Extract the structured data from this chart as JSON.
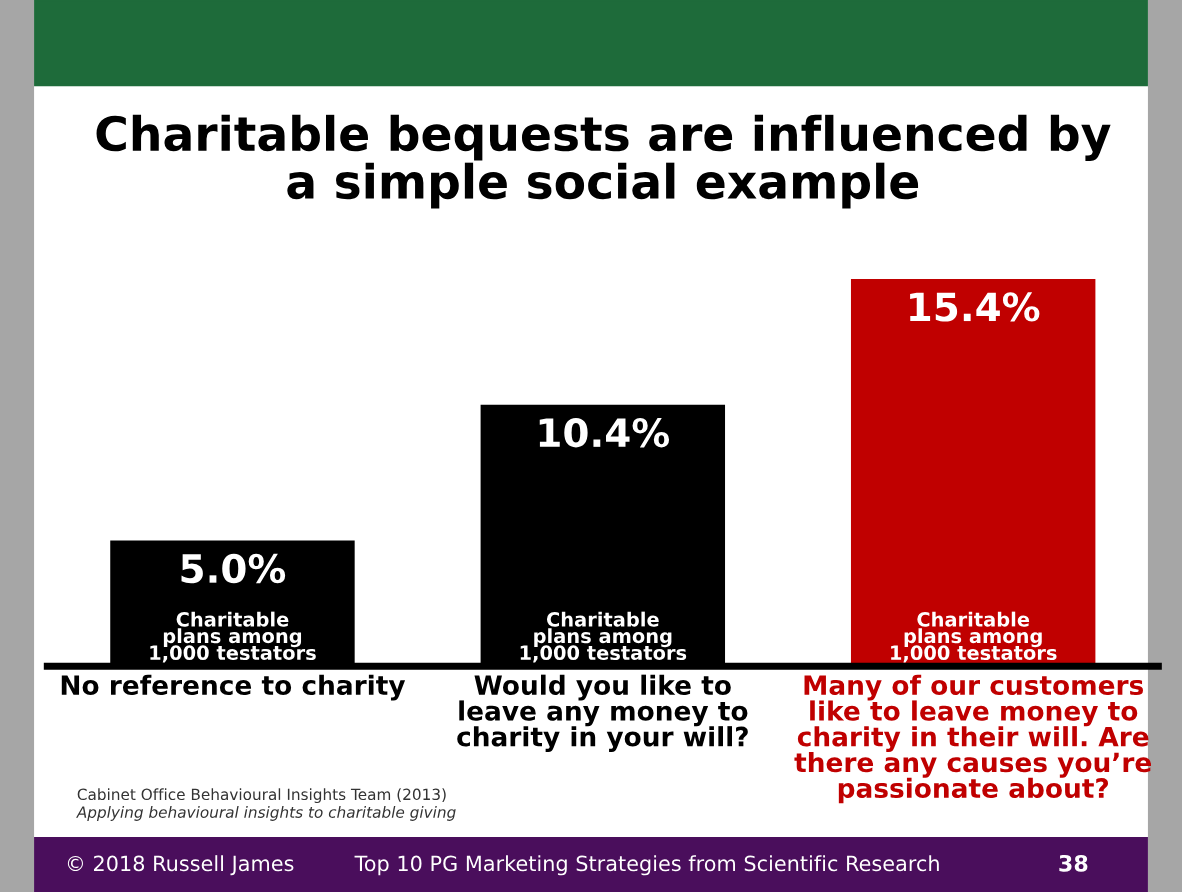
{
  "chart_data": {
    "type": "bar",
    "title": "Charitable bequests are influenced by\na simple social example",
    "categories": [
      "No reference to charity",
      "Would you like to\nleave any money to\ncharity in your will?",
      "Many of our customers\nlike to leave money to\ncharity in their will. Are\nthere any causes you’re\npassionate about?"
    ],
    "values": [
      5.0,
      10.4,
      15.4
    ],
    "colors": [
      "#000000",
      "#000000",
      "#c00000"
    ],
    "value_labels": [
      "5.0%",
      "10.4%",
      "15.4%"
    ],
    "annotations": [
      {
        "text": "Charitable\nplans among\n1,000 testators",
        "x": "No reference to charity",
        "y": 0
      },
      {
        "text": "Charitable\nplans among\n1,000 testators",
        "x": "Would you like to\nleave any money to\ncharity in your will?",
        "y": 0
      },
      {
        "text": "Charitable\nplans among\n1,000 testators",
        "x": "Many of our customers\nlike to leave money to\ncharity in their will. Are\nthere any causes you’re\npassionate about?",
        "y": 0
      },
      "Cabinet Office Behavioural Insights Team (2013)",
      "Applying behavioural insights to charitable giving",
      "© 2018 Russell James",
      "Top 10 PG Marketing Strategies from Scientific Research",
      "38"
    ],
    "grid": false
  }
}
